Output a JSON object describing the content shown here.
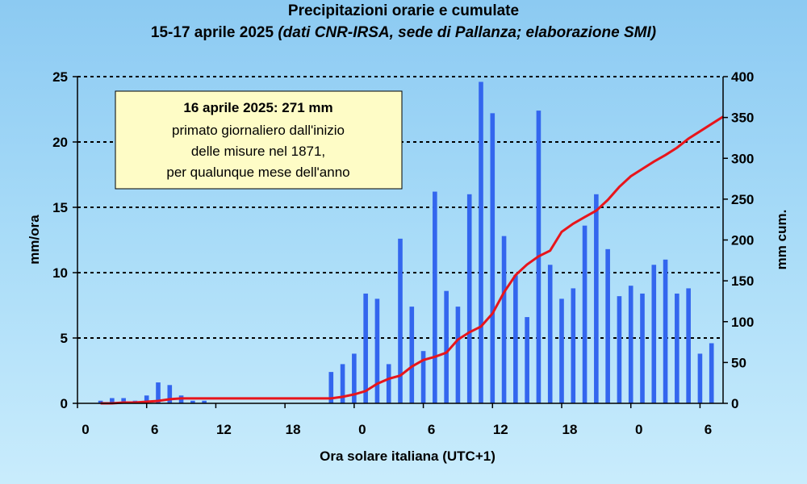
{
  "chart_data": {
    "type": "bar",
    "title": "Precipitazioni orarie e cumulate",
    "subtitle_plain": "15-17 aprile 2025",
    "subtitle_italic": "(dati CNR-IRSA, sede di Pallanza; elaborazione SMI)",
    "xlabel": "Ora solare italiana (UTC+1)",
    "ylabel_left": "mm/ora",
    "ylabel_right": "mm cum.",
    "ylim_left": [
      0,
      25
    ],
    "ylim_right": [
      0,
      400
    ],
    "yticks_left": [
      "0",
      "5",
      "10",
      "15",
      "20",
      "25"
    ],
    "yticks_right": [
      "0",
      "50",
      "100",
      "150",
      "200",
      "250",
      "300",
      "350",
      "400"
    ],
    "xticks": [
      "0",
      "6",
      "12",
      "18",
      "0",
      "6",
      "12",
      "18",
      "0",
      "6"
    ],
    "xlim_hours": [
      0,
      56
    ],
    "grid": "horizontal dotted",
    "bar_color": "#3366ee",
    "line_color": "#e8151b",
    "series": [
      {
        "name": "mm/ora",
        "kind": "bar",
        "axis": "left",
        "hours": [
          2,
          3,
          4,
          5,
          6,
          7,
          8,
          9,
          10,
          11,
          12,
          13,
          14,
          15,
          16,
          17,
          18,
          19,
          20,
          21,
          22,
          23,
          24,
          25,
          26,
          27,
          28,
          29,
          30,
          31,
          32,
          33,
          34,
          35,
          36,
          37,
          38,
          39,
          40,
          41,
          42,
          43,
          44,
          45,
          46,
          47,
          48,
          49,
          50,
          51,
          52,
          53,
          54,
          55,
          56
        ],
        "values": [
          0.2,
          0.4,
          0.4,
          0.2,
          0.6,
          1.6,
          1.4,
          0.6,
          0.2,
          0.2,
          0,
          0,
          0,
          0,
          0,
          0,
          0,
          0,
          0,
          0,
          2.4,
          3.0,
          3.8,
          8.4,
          8.0,
          3.0,
          12.6,
          7.4,
          4.0,
          16.2,
          8.6,
          7.4,
          16.0,
          24.6,
          22.2,
          12.8,
          9.8,
          6.6,
          22.4,
          10.6,
          8.0,
          8.8,
          13.6,
          16.0,
          11.8,
          8.2,
          9.0,
          8.4,
          10.6,
          11.0,
          8.4,
          8.8,
          3.8,
          4.6,
          0
        ]
      },
      {
        "name": "mm cum.",
        "kind": "line",
        "axis": "right",
        "hours": [
          2,
          3,
          4,
          5,
          6,
          7,
          8,
          9,
          10,
          11,
          12,
          13,
          14,
          15,
          16,
          17,
          18,
          19,
          20,
          21,
          22,
          23,
          24,
          25,
          26,
          27,
          28,
          29,
          30,
          31,
          32,
          33,
          34,
          35,
          36,
          37,
          38,
          39,
          40,
          41,
          42,
          43,
          44,
          45,
          46,
          47,
          48,
          49,
          50,
          51,
          52,
          53,
          54,
          55,
          56
        ],
        "values": [
          0,
          0,
          1,
          1,
          2,
          3,
          5,
          6,
          6,
          6,
          6,
          6,
          6,
          6,
          6,
          6,
          6,
          6,
          6,
          6,
          6,
          8,
          11,
          15,
          24,
          30,
          34,
          45,
          53,
          57,
          62,
          78,
          87,
          94,
          110,
          136,
          157,
          170,
          180,
          187,
          210,
          220,
          228,
          236,
          249,
          265,
          278,
          287,
          296,
          304,
          313,
          324,
          333,
          342,
          351
        ]
      }
    ],
    "annotation": {
      "line1": "16 aprile 2025: 271 mm",
      "line2": "primato giornaliero dall'inizio",
      "line3": "delle misure nel 1871,",
      "line4": "per qualunque mese dell'anno"
    }
  }
}
